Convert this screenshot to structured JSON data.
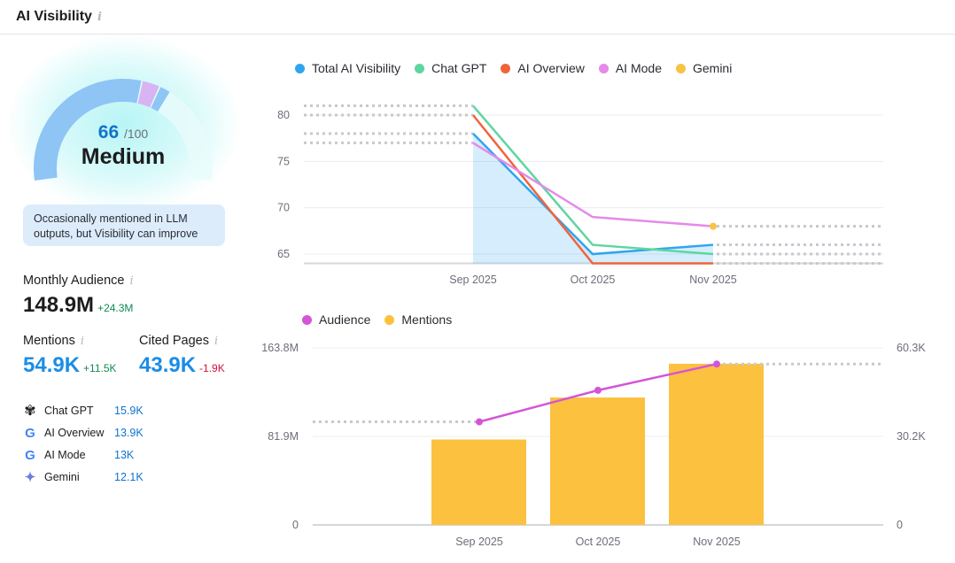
{
  "header": {
    "title": "AI Visibility",
    "info_icon": "info-icon"
  },
  "gauge": {
    "score": "66",
    "max": "/100",
    "level": "Medium",
    "score_fraction": 0.66,
    "note": "Occasionally mentioned in LLM outputs, but Visibility can improve",
    "colors": {
      "main": "#8ec5f5",
      "purple": "#d7b4f3"
    }
  },
  "stats": {
    "monthly_audience": {
      "label": "Monthly Audience",
      "value": "148.9M",
      "delta": "+24.3M"
    },
    "mentions": {
      "label": "Mentions",
      "value": "54.9K",
      "delta": "+11.5K"
    },
    "cited_pages": {
      "label": "Cited Pages",
      "value": "43.9K",
      "delta": "-1.9K"
    }
  },
  "sources": [
    {
      "name": "Chat GPT",
      "value": "15.9K",
      "icon": "chatgpt-icon"
    },
    {
      "name": "AI Overview",
      "value": "13.9K",
      "icon": "google-icon"
    },
    {
      "name": "AI Mode",
      "value": "13K",
      "icon": "google-icon"
    },
    {
      "name": "Gemini",
      "value": "12.1K",
      "icon": "gemini-icon"
    }
  ],
  "chart_data": [
    {
      "type": "line",
      "categories": [
        "Sep 2025",
        "Oct 2025",
        "Nov 2025"
      ],
      "ylim": [
        64,
        81
      ],
      "yticks": [
        "65",
        "70",
        "75",
        "80"
      ],
      "legend_position": "top-left",
      "grid": true,
      "series": [
        {
          "name": "Total AI Visibility",
          "color": "#2fa5f0",
          "values": [
            78,
            65,
            66
          ],
          "area": true
        },
        {
          "name": "Chat GPT",
          "color": "#5ed6a0",
          "values": [
            81,
            66,
            65
          ]
        },
        {
          "name": "AI Overview",
          "color": "#f0643c",
          "values": [
            80,
            64,
            64
          ]
        },
        {
          "name": "AI Mode",
          "color": "#e68ae8",
          "values": [
            77,
            69,
            68
          ]
        },
        {
          "name": "Gemini",
          "color": "#f5c445",
          "values": [
            null,
            null,
            68
          ]
        }
      ]
    },
    {
      "type": "bar",
      "categories": [
        "Sep 2025",
        "Oct 2025",
        "Nov 2025"
      ],
      "legend_position": "top-left",
      "grid": true,
      "left_axis": {
        "ylim": [
          0,
          163.8
        ],
        "ticks": [
          "0",
          "81.9M",
          "163.8M"
        ]
      },
      "right_axis": {
        "ylim": [
          0,
          60.3
        ],
        "ticks": [
          "0",
          "30.2K",
          "60.3K"
        ]
      },
      "series": [
        {
          "name": "Audience",
          "type": "line",
          "axis": "left",
          "unit": "M",
          "color": "#d455d8",
          "values": [
            95.4,
            124.6,
            148.9
          ]
        },
        {
          "name": "Mentions",
          "type": "bar",
          "axis": "right",
          "unit": "K",
          "color": "#fbc13f",
          "values": [
            29.1,
            43.4,
            54.9
          ]
        }
      ]
    }
  ]
}
